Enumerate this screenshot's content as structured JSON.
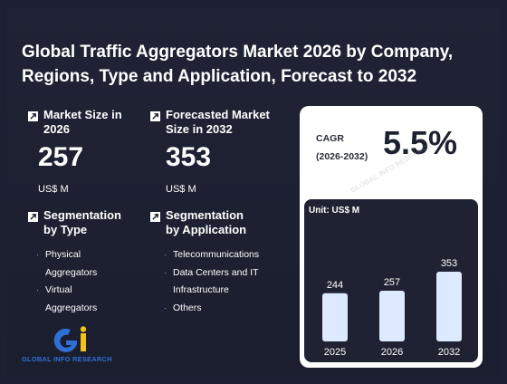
{
  "title": "Global Traffic Aggregators Market 2026 by Company, Regions, Type and Application, Forecast to 2032",
  "market_size": {
    "label": "Market Size in 2026",
    "value": "257",
    "unit": "US$ M"
  },
  "forecast": {
    "label": "Forecasted Market Size in 2032",
    "value": "353",
    "unit": "US$ M"
  },
  "seg_type": {
    "label": "Segmentation by Type",
    "items": [
      "Physical Aggregators",
      "Virtual Aggregators"
    ]
  },
  "seg_app": {
    "label": "Segmentation by Application",
    "items": [
      "Telecommunications",
      "Data Centers and IT Infrastructure",
      "Others"
    ]
  },
  "cagr": {
    "label_line1": "CAGR",
    "label_line2": "(2026-2032)",
    "value": "5.5%"
  },
  "logo_text": "GLOBAL INFO RESEARCH",
  "watermark_text": "GLOBAL INFO RESEARCH",
  "colors": {
    "background": "#1c2032",
    "bar": "#dde9ff",
    "logo_blue": "#2f6fd6",
    "logo_yellow": "#f2c21b"
  },
  "chart_data": {
    "type": "bar",
    "ylabel": "Unit: US$ M",
    "categories": [
      "2025",
      "2026",
      "2032"
    ],
    "values": [
      244,
      257,
      353
    ],
    "ylim": [
      0,
      353
    ],
    "grid": false
  }
}
